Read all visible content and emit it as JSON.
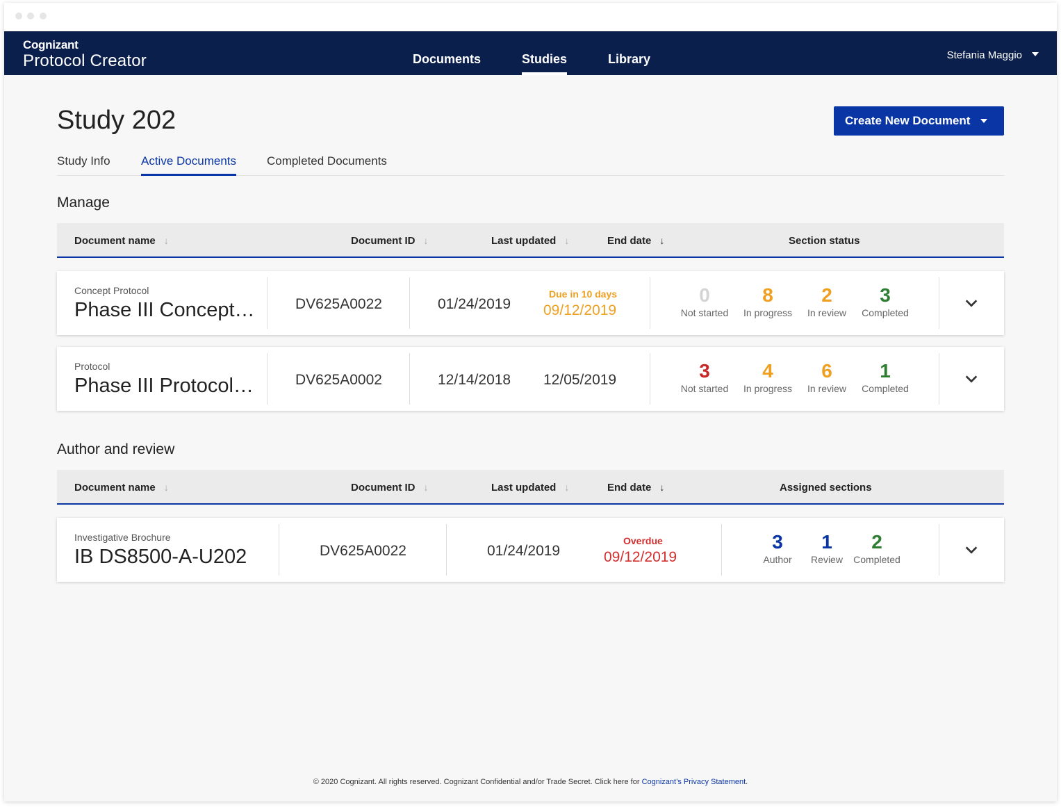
{
  "brand": {
    "company": "Cognizant",
    "product": "Protocol Creator"
  },
  "nav": {
    "items": [
      "Documents",
      "Studies",
      "Library"
    ],
    "active": "Studies",
    "user": "Stefania Maggio"
  },
  "page": {
    "title": "Study 202",
    "create_button": "Create New Document"
  },
  "tabs": [
    "Study Info",
    "Active Documents",
    "Completed Documents"
  ],
  "manage": {
    "title": "Manage",
    "headers": {
      "name": "Document name",
      "id": "Document ID",
      "updated": "Last updated",
      "end": "End date",
      "status": "Section status"
    },
    "rows": [
      {
        "type": "Concept Protocol",
        "name": "Phase III Concept…",
        "id": "DV625A0022",
        "updated": "01/24/2019",
        "due_label": "Due in 10 days",
        "end": "09/12/2019",
        "stats": [
          {
            "num": "0",
            "label": "Not started",
            "color": "#d4d4d4"
          },
          {
            "num": "8",
            "label": "In progress",
            "color": "#f0a020"
          },
          {
            "num": "2",
            "label": "In review",
            "color": "#f0a020"
          },
          {
            "num": "3",
            "label": "Completed",
            "color": "#2e7d32"
          }
        ]
      },
      {
        "type": "Protocol",
        "name": "Phase III Protocol…",
        "id": "DV625A0002",
        "updated": "12/14/2018",
        "due_label": "",
        "end": "12/05/2019",
        "stats": [
          {
            "num": "3",
            "label": "Not started",
            "color": "#c62828"
          },
          {
            "num": "4",
            "label": "In progress",
            "color": "#f0a020"
          },
          {
            "num": "6",
            "label": "In review",
            "color": "#f0a020"
          },
          {
            "num": "1",
            "label": "Completed",
            "color": "#2e7d32"
          }
        ]
      }
    ]
  },
  "author": {
    "title": "Author and review",
    "headers": {
      "name": "Document name",
      "id": "Document ID",
      "updated": "Last updated",
      "end": "End date",
      "status": "Assigned sections"
    },
    "rows": [
      {
        "type": "Investigative Brochure",
        "name": "IB DS8500-A-U202",
        "id": "DV625A0022",
        "updated": "01/24/2019",
        "due_label": "Overdue",
        "end": "09/12/2019",
        "stats": [
          {
            "num": "3",
            "label": "Author",
            "color": "#0a35a5"
          },
          {
            "num": "1",
            "label": "Review",
            "color": "#0a35a5"
          },
          {
            "num": "2",
            "label": "Completed",
            "color": "#2e7d32"
          }
        ]
      }
    ]
  },
  "colors": {
    "navy": "#0b1f4d",
    "accent": "#0a35a5",
    "due_soon": "#f0a020",
    "overdue": "#d32f2f"
  },
  "footer": {
    "text": "© 2020 Cognizant. All rights reserved. Cognizant Confidential and/or Trade Secret. Click here for ",
    "link": "Cognizant’s Privacy Statement",
    "end": "."
  }
}
